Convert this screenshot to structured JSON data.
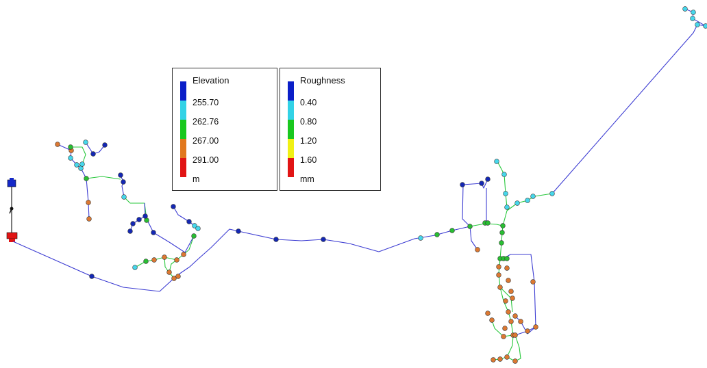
{
  "legends": {
    "elevation": {
      "title": "Elevation",
      "colors": [
        "#0a1ec8",
        "#32d2e6",
        "#19c81e",
        "#e1781e",
        "#e11414"
      ],
      "breaks": [
        "255.70",
        "262.76",
        "267.00",
        "291.00"
      ],
      "unit": "m"
    },
    "roughness": {
      "title": "Roughness",
      "colors": [
        "#0a1ec8",
        "#32d2e6",
        "#19c81e",
        "#f0f014",
        "#e11414"
      ],
      "breaks": [
        "0.40",
        "0.80",
        "1.20",
        "1.60"
      ],
      "unit": "mm"
    }
  },
  "colors": {
    "link_low": "#3c3cd2",
    "link_mid": "#28c83c",
    "node_dark_blue": "#1428b4",
    "node_cyan": "#46d7eb",
    "node_green": "#28be32",
    "node_orange": "#dc7832",
    "reservoir": "#e11414",
    "tank": "#1428c8"
  },
  "map_icons": [
    "tank-icon",
    "reservoir-icon"
  ]
}
